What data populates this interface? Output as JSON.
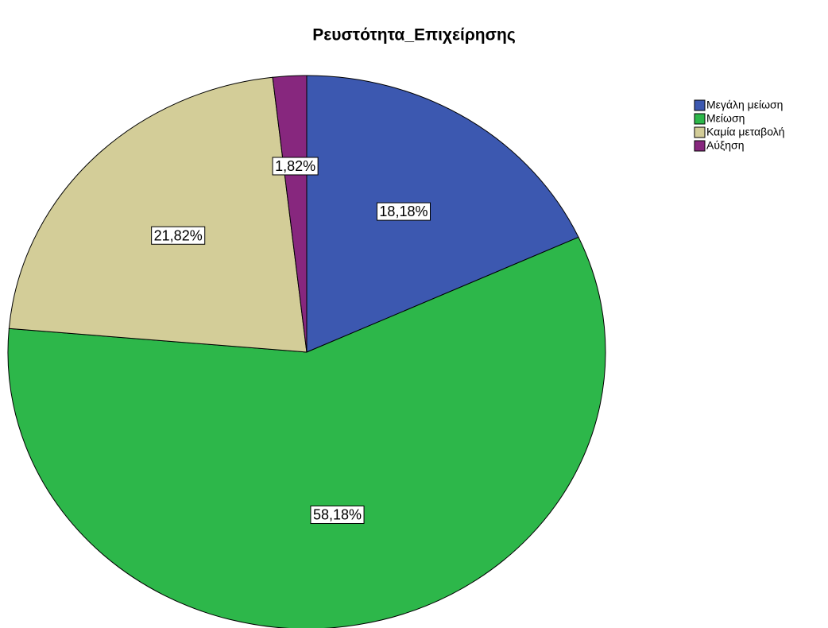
{
  "chart_data": {
    "type": "pie",
    "title": "Ρευστότητα_Επιχείρησης",
    "categories": [
      "Μεγάλη μείωση",
      "Μείωση",
      "Καμία μεταβολή",
      "Αύξηση"
    ],
    "values": [
      18.18,
      58.18,
      21.82,
      1.82
    ],
    "value_labels": [
      "18,18%",
      "58,18%",
      "21,82%",
      "1,82%"
    ],
    "colors": [
      "#3c58b0",
      "#2db74a",
      "#d3cd98",
      "#87277e"
    ],
    "legend": "top-right"
  }
}
